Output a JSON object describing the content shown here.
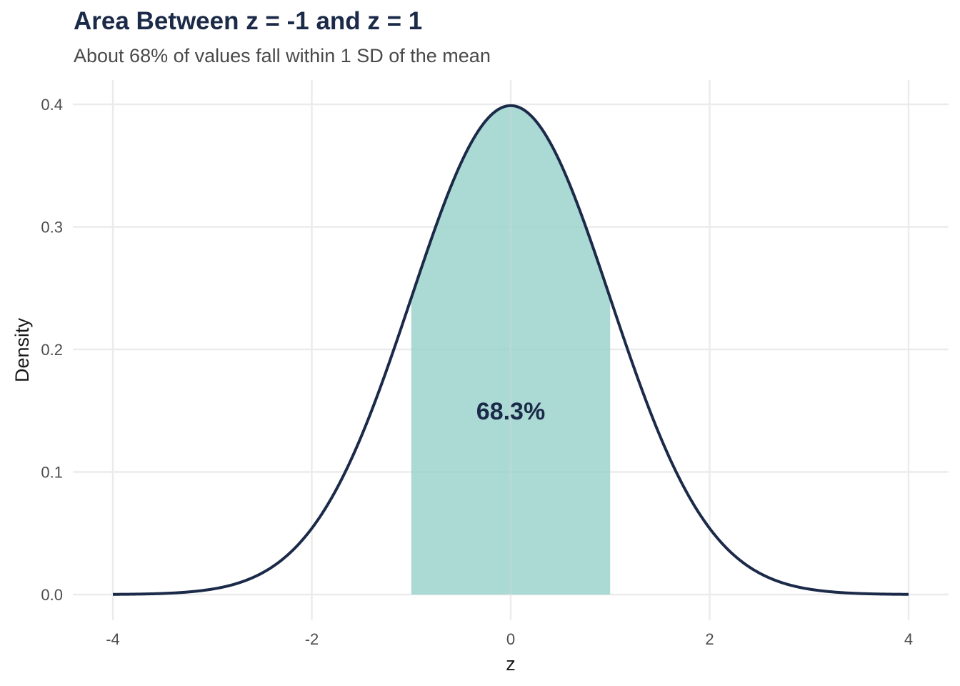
{
  "chart_data": {
    "type": "area",
    "title": "Area Between z = -1 and z = 1",
    "subtitle": "About 68% of values fall within 1 SD of the mean",
    "xlabel": "z",
    "ylabel": "Density",
    "xlim": [
      -4.2,
      4.2
    ],
    "ylim": [
      0,
      0.42
    ],
    "x_ticks": [
      -4,
      -2,
      0,
      2,
      4
    ],
    "x_tick_labels": [
      "-4",
      "-2",
      "0",
      "2",
      "4"
    ],
    "y_ticks": [
      0.0,
      0.1,
      0.2,
      0.3,
      0.4
    ],
    "y_tick_labels": [
      "0.0",
      "0.1",
      "0.2",
      "0.3",
      "0.4"
    ],
    "curve": {
      "distribution": "standard normal",
      "x": [
        -4,
        -3.5,
        -3,
        -2.5,
        -2,
        -1.5,
        -1,
        -0.5,
        0,
        0.5,
        1,
        1.5,
        2,
        2.5,
        3,
        3.5,
        4
      ],
      "y": [
        0.0001,
        0.0009,
        0.0044,
        0.0175,
        0.054,
        0.1295,
        0.242,
        0.3521,
        0.3989,
        0.3521,
        0.242,
        0.1295,
        0.054,
        0.0175,
        0.0044,
        0.0009,
        0.0001
      ]
    },
    "shaded_region": {
      "from": -1,
      "to": 1
    },
    "annotation": {
      "text": "68.3%",
      "x": 0,
      "y": 0.15
    },
    "grid": true,
    "colors": {
      "curve": "#1c2a49",
      "fill": "#94cfc9",
      "grid": "#ebebeb",
      "title": "#1c2a49"
    }
  }
}
